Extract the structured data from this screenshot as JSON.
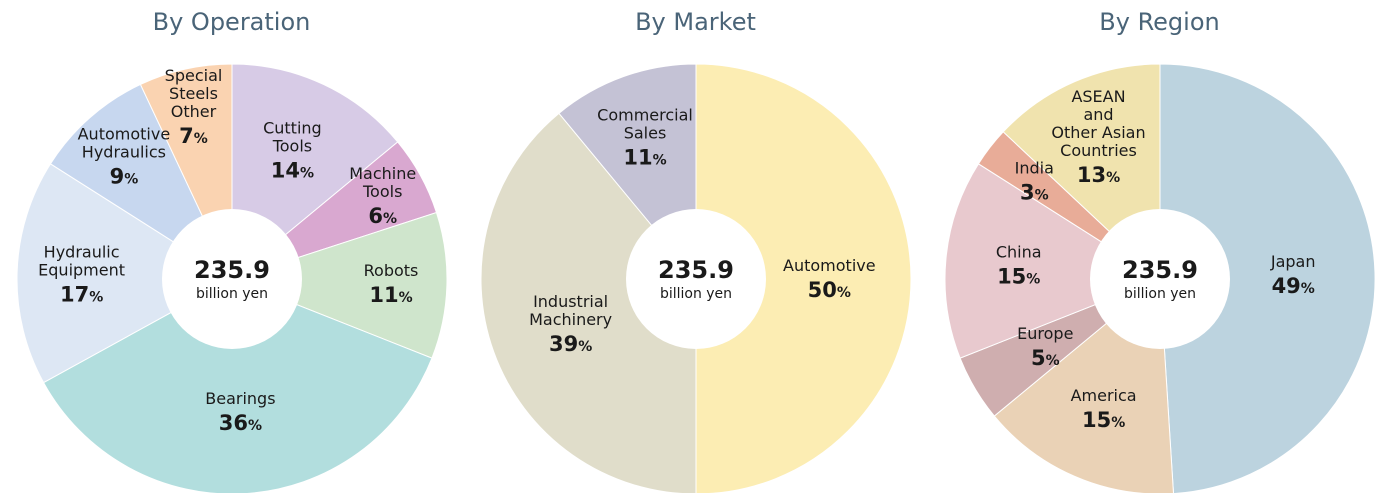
{
  "chart_data": [
    {
      "type": "pie",
      "title": "By Operation",
      "center_value": "235.9",
      "center_unit": "billion yen",
      "percent_suffix": "%",
      "slices": [
        {
          "label": "Cutting\nTools",
          "value": 14,
          "color": "#d7cbe6"
        },
        {
          "label": "Machine\nTools",
          "value": 6,
          "color": "#d9a8d0"
        },
        {
          "label": "Robots",
          "value": 11,
          "color": "#cfe5cc"
        },
        {
          "label": "Bearings",
          "value": 36,
          "color": "#b2dede"
        },
        {
          "label": "Hydraulic\nEquipment",
          "value": 17,
          "color": "#dde7f4"
        },
        {
          "label": "Automotive\nHydraulics",
          "value": 9,
          "color": "#c7d7ef"
        },
        {
          "label": "Special\nSteels\nOther",
          "value": 7,
          "color": "#fad3b1"
        }
      ]
    },
    {
      "type": "pie",
      "title": "By Market",
      "center_value": "235.9",
      "center_unit": "billion yen",
      "percent_suffix": "%",
      "slices": [
        {
          "label": "Automotive",
          "value": 50,
          "color": "#fcedb3"
        },
        {
          "label": "Industrial\nMachinery",
          "value": 39,
          "color": "#e0ddca"
        },
        {
          "label": "Commercial\nSales",
          "value": 11,
          "color": "#c4c2d5"
        }
      ]
    },
    {
      "type": "pie",
      "title": "By Region",
      "center_value": "235.9",
      "center_unit": "billion yen",
      "percent_suffix": "%",
      "slices": [
        {
          "label": "Japan",
          "value": 49,
          "color": "#bcd3df"
        },
        {
          "label": "America",
          "value": 15,
          "color": "#ead2b6"
        },
        {
          "label": "Europe",
          "value": 5,
          "color": "#cfaeaf"
        },
        {
          "label": "China",
          "value": 15,
          "color": "#e8c9ce"
        },
        {
          "label": "India",
          "value": 3,
          "color": "#e8ac98"
        },
        {
          "label": "ASEAN\nand\nOther Asian\nCountries",
          "value": 13,
          "color": "#f0e3ae"
        }
      ]
    }
  ]
}
